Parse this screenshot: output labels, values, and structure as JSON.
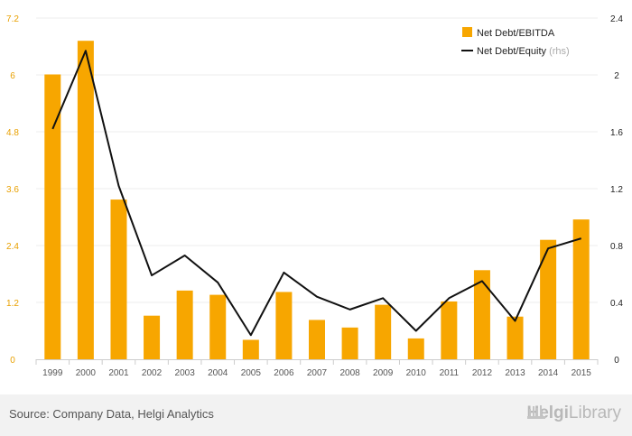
{
  "colors": {
    "bar": "#F7A600",
    "line": "#111111",
    "tick_left": "#E8A000",
    "tick_right": "#222222",
    "grid": "#eeeeee",
    "footer_bg": "#f2f2f2"
  },
  "chart_data": {
    "type": "bar",
    "categories": [
      "1999",
      "2000",
      "2001",
      "2002",
      "2003",
      "2004",
      "2005",
      "2006",
      "2007",
      "2008",
      "2009",
      "2010",
      "2011",
      "2012",
      "2013",
      "2014",
      "2015"
    ],
    "series": [
      {
        "name": "Net Debt/EBITDA",
        "type": "bar",
        "axis": "left",
        "values": [
          6.01,
          6.72,
          3.37,
          0.92,
          1.45,
          1.36,
          0.41,
          1.42,
          0.83,
          0.67,
          1.15,
          0.44,
          1.22,
          1.88,
          0.9,
          2.52,
          2.95
        ]
      },
      {
        "name": "Net Debt/Equity",
        "name_suffix": "(rhs)",
        "type": "line",
        "axis": "right",
        "values": [
          1.62,
          2.17,
          1.22,
          0.59,
          0.73,
          0.54,
          0.17,
          0.61,
          0.44,
          0.35,
          0.43,
          0.2,
          0.43,
          0.55,
          0.27,
          0.78,
          0.85
        ]
      }
    ],
    "y_left": {
      "ylim": [
        0,
        7.2
      ],
      "ticks": [
        "0",
        "1.2",
        "2.4",
        "3.6",
        "4.8",
        "6",
        "7.2"
      ]
    },
    "y_right": {
      "ylim": [
        0,
        2.4
      ],
      "ticks": [
        "0",
        "0.4",
        "0.8",
        "1.2",
        "1.6",
        "2",
        "2.4"
      ]
    },
    "grid": true,
    "legend": "top-right",
    "title": "",
    "xlabel": "",
    "ylabel": ""
  },
  "footer": {
    "source": "Source: Company Data, Helgi Analytics",
    "logo_text_a": "Helgi",
    "logo_text_b": "Library",
    "logo_icon": "building-icon"
  }
}
